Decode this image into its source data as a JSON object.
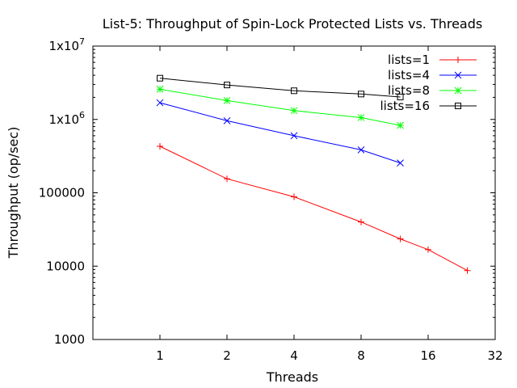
{
  "chart_data": {
    "type": "line",
    "title": "List-5: Throughput of Spin-Lock Protected Lists vs. Threads",
    "xlabel": "Threads",
    "ylabel": "Throughput (op/sec)",
    "xscale": "log2",
    "yscale": "log10",
    "xlim": [
      0.5,
      32
    ],
    "ylim": [
      1000,
      10000000
    ],
    "x_ticks": [
      1,
      2,
      4,
      8,
      16,
      32
    ],
    "x_tick_labels": [
      "1",
      "2",
      "4",
      "8",
      "16",
      "32"
    ],
    "y_ticks": [
      1000,
      10000,
      100000,
      1000000,
      10000000
    ],
    "y_tick_labels": [
      {
        "base": "1000",
        "exp": ""
      },
      {
        "base": "10000",
        "exp": ""
      },
      {
        "base": "100000",
        "exp": ""
      },
      {
        "base": "1x10",
        "exp": "6"
      },
      {
        "base": "1x10",
        "exp": "7"
      }
    ],
    "grid": false,
    "legend_position": "top-right",
    "series": [
      {
        "name": "lists=1",
        "color": "#ff0000",
        "marker": "plus",
        "x": [
          1,
          2,
          4,
          8,
          12,
          16,
          24
        ],
        "y": [
          430000,
          155000,
          88000,
          40000,
          23500,
          16800,
          8700
        ]
      },
      {
        "name": "lists=4",
        "color": "#0000ff",
        "marker": "cross",
        "x": [
          1,
          2,
          4,
          8,
          12
        ],
        "y": [
          1690000,
          960000,
          600000,
          385000,
          255000
        ]
      },
      {
        "name": "lists=8",
        "color": "#00ff00",
        "marker": "star",
        "x": [
          1,
          2,
          4,
          8,
          12
        ],
        "y": [
          2580000,
          1810000,
          1320000,
          1060000,
          830000
        ]
      },
      {
        "name": "lists=16",
        "color": "#000000",
        "marker": "square",
        "x": [
          1,
          2,
          4,
          8,
          12
        ],
        "y": [
          3650000,
          2950000,
          2460000,
          2220000,
          2020000
        ]
      }
    ]
  }
}
